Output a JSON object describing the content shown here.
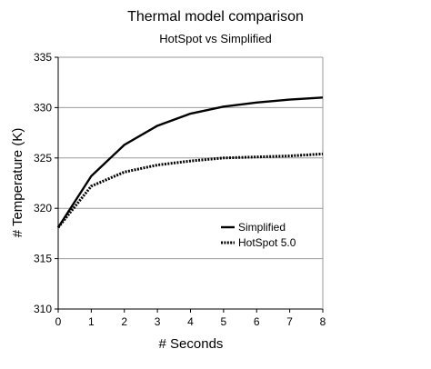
{
  "chart_data": {
    "type": "line",
    "title": "Thermal model comparison",
    "subtitle": "HotSpot vs Simplified",
    "xlabel": "# Seconds",
    "ylabel": "# Temperature (K)",
    "x": [
      0,
      1,
      2,
      3,
      4,
      5,
      6,
      7,
      8
    ],
    "xlim": [
      0,
      8
    ],
    "ylim": [
      310,
      335
    ],
    "xticks": [
      "0",
      "1",
      "2",
      "3",
      "4",
      "5",
      "6",
      "7",
      "8"
    ],
    "yticks": [
      "310",
      "315",
      "320",
      "325",
      "330",
      "335"
    ],
    "grid": "horizontal",
    "legend_position": "right-center",
    "series": [
      {
        "name": "Simplified",
        "style": "solid",
        "color": "#000000",
        "values": [
          318.1,
          323.2,
          326.3,
          328.2,
          329.4,
          330.1,
          330.5,
          330.8,
          331.0
        ]
      },
      {
        "name": "HotSpot 5.0",
        "style": "dotted",
        "color": "#000000",
        "values": [
          318.1,
          322.2,
          323.6,
          324.3,
          324.7,
          325.0,
          325.1,
          325.2,
          325.4
        ]
      }
    ]
  }
}
